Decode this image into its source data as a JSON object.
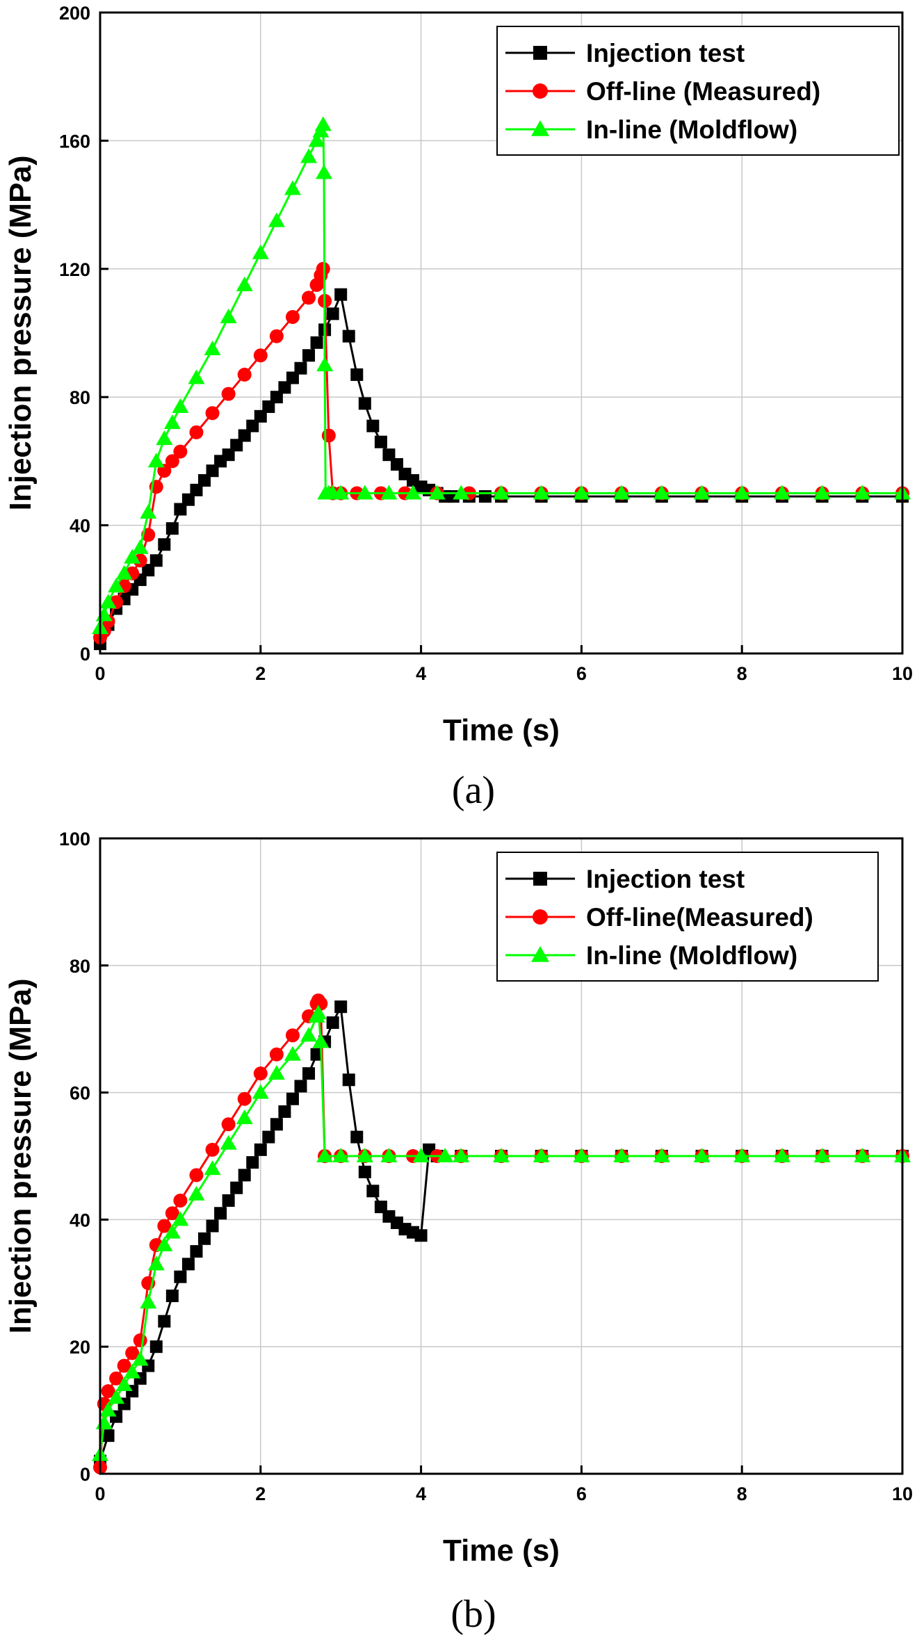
{
  "chart_data": [
    {
      "type": "line",
      "caption": "(a)",
      "xlabel": "Time (s)",
      "ylabel": "Injection pressure (MPa)",
      "xlim": [
        0,
        10
      ],
      "ylim": [
        0,
        200
      ],
      "xticks": [
        0,
        2,
        4,
        6,
        8,
        10
      ],
      "yticks": [
        0,
        40,
        80,
        120,
        160,
        200
      ],
      "grid": true,
      "legend_position": "top-right",
      "series": [
        {
          "name": "Injection test",
          "color": "#000000",
          "marker": "square",
          "x": [
            0,
            0.1,
            0.2,
            0.3,
            0.4,
            0.5,
            0.6,
            0.7,
            0.8,
            0.9,
            1.0,
            1.1,
            1.2,
            1.3,
            1.4,
            1.5,
            1.6,
            1.7,
            1.8,
            1.9,
            2.0,
            2.1,
            2.2,
            2.3,
            2.4,
            2.5,
            2.6,
            2.7,
            2.8,
            2.9,
            3.0,
            3.1,
            3.2,
            3.3,
            3.4,
            3.5,
            3.6,
            3.7,
            3.8,
            3.9,
            4.0,
            4.1,
            4.2,
            4.3,
            4.4,
            4.6,
            4.8,
            5.0,
            5.5,
            6.0,
            6.5,
            7.0,
            7.5,
            8.0,
            8.5,
            9.0,
            9.5,
            10.0
          ],
          "y": [
            3,
            9,
            14,
            17,
            20,
            23,
            26,
            29,
            34,
            39,
            45,
            48,
            51,
            54,
            57,
            60,
            62,
            65,
            68,
            71,
            74,
            77,
            80,
            83,
            86,
            89,
            93,
            97,
            101,
            106,
            112,
            99,
            87,
            78,
            71,
            66,
            62,
            59,
            56,
            54,
            52,
            51,
            50,
            49,
            49,
            49,
            49,
            49,
            49,
            49,
            49,
            49,
            49,
            49,
            49,
            49,
            49,
            49
          ]
        },
        {
          "name": "Off-line (Measured)",
          "color": "#ff0000",
          "marker": "circle",
          "x": [
            0,
            0.05,
            0.1,
            0.2,
            0.3,
            0.4,
            0.5,
            0.6,
            0.7,
            0.8,
            0.9,
            1.0,
            1.2,
            1.4,
            1.6,
            1.8,
            2.0,
            2.2,
            2.4,
            2.6,
            2.7,
            2.75,
            2.78,
            2.8,
            2.85,
            2.9,
            3.0,
            3.2,
            3.5,
            3.8,
            4.2,
            4.6,
            5.0,
            5.5,
            6.0,
            6.5,
            7.0,
            7.5,
            8.0,
            8.5,
            9.0,
            9.5,
            10.0
          ],
          "y": [
            5,
            7,
            10,
            16,
            21,
            25,
            29,
            37,
            52,
            57,
            60,
            63,
            69,
            75,
            81,
            87,
            93,
            99,
            105,
            111,
            115,
            118,
            120,
            110,
            68,
            50,
            50,
            50,
            50,
            50,
            50,
            50,
            50,
            50,
            50,
            50,
            50,
            50,
            50,
            50,
            50,
            50,
            50
          ]
        },
        {
          "name": "In-line (Moldflow)",
          "color": "#00ff00",
          "marker": "triangle",
          "x": [
            0,
            0.05,
            0.1,
            0.2,
            0.3,
            0.4,
            0.5,
            0.6,
            0.7,
            0.8,
            0.9,
            1.0,
            1.2,
            1.4,
            1.6,
            1.8,
            2.0,
            2.2,
            2.4,
            2.6,
            2.7,
            2.75,
            2.78,
            2.79,
            2.8,
            2.81,
            2.85,
            2.9,
            3.0,
            3.3,
            3.6,
            3.9,
            4.2,
            4.5,
            5.0,
            5.5,
            6.0,
            6.5,
            7.0,
            7.5,
            8.0,
            8.5,
            9.0,
            9.5,
            10.0
          ],
          "y": [
            8,
            12,
            16,
            21,
            25,
            30,
            33,
            44,
            60,
            67,
            72,
            77,
            86,
            95,
            105,
            115,
            125,
            135,
            145,
            155,
            160,
            163,
            165,
            150,
            90,
            50,
            50,
            50,
            50,
            50,
            50,
            50,
            50,
            50,
            50,
            50,
            50,
            50,
            50,
            50,
            50,
            50,
            50,
            50,
            50
          ]
        }
      ]
    },
    {
      "type": "line",
      "caption": "(b)",
      "xlabel": "Time (s)",
      "ylabel": "Injection pressure (MPa)",
      "xlim": [
        0,
        10
      ],
      "ylim": [
        0,
        100
      ],
      "xticks": [
        0,
        2,
        4,
        6,
        8,
        10
      ],
      "yticks": [
        0,
        20,
        40,
        60,
        80,
        100
      ],
      "grid": true,
      "legend_position": "top-right",
      "series": [
        {
          "name": "Injection test",
          "color": "#000000",
          "marker": "square",
          "x": [
            0,
            0.1,
            0.2,
            0.3,
            0.4,
            0.5,
            0.6,
            0.7,
            0.8,
            0.9,
            1.0,
            1.1,
            1.2,
            1.3,
            1.4,
            1.5,
            1.6,
            1.7,
            1.8,
            1.9,
            2.0,
            2.1,
            2.2,
            2.3,
            2.4,
            2.5,
            2.6,
            2.7,
            2.8,
            2.9,
            3.0,
            3.1,
            3.2,
            3.3,
            3.4,
            3.5,
            3.6,
            3.7,
            3.8,
            3.9,
            4.0,
            4.1,
            4.2,
            4.5,
            5.0,
            5.5,
            6.0,
            6.5,
            7.0,
            7.5,
            8.0,
            8.5,
            9.0,
            9.5,
            10.0
          ],
          "y": [
            2,
            6,
            9,
            11,
            13,
            15,
            17,
            20,
            24,
            28,
            31,
            33,
            35,
            37,
            39,
            41,
            43,
            45,
            47,
            49,
            51,
            53,
            55,
            57,
            59,
            61,
            63,
            66,
            68,
            71,
            73.5,
            62,
            53,
            47.5,
            44.5,
            42,
            40.5,
            39.5,
            38.5,
            38,
            37.5,
            51,
            50,
            50,
            50,
            50,
            50,
            50,
            50,
            50,
            50,
            50,
            50,
            50,
            50
          ]
        },
        {
          "name": "Off-line(Measured)",
          "color": "#ff0000",
          "marker": "circle",
          "x": [
            0,
            0.05,
            0.1,
            0.2,
            0.3,
            0.4,
            0.5,
            0.6,
            0.7,
            0.8,
            0.9,
            1.0,
            1.2,
            1.4,
            1.6,
            1.8,
            2.0,
            2.2,
            2.4,
            2.6,
            2.7,
            2.72,
            2.75,
            2.8,
            3.0,
            3.3,
            3.6,
            3.9,
            4.2,
            4.5,
            5.0,
            5.5,
            6.0,
            6.5,
            7.0,
            7.5,
            8.0,
            8.5,
            9.0,
            9.5,
            10.0
          ],
          "y": [
            1,
            11,
            13,
            15,
            17,
            19,
            21,
            30,
            36,
            39,
            41,
            43,
            47,
            51,
            55,
            59,
            63,
            66,
            69,
            72,
            74,
            74.5,
            74,
            50,
            50,
            50,
            50,
            50,
            50,
            50,
            50,
            50,
            50,
            50,
            50,
            50,
            50,
            50,
            50,
            50,
            50
          ]
        },
        {
          "name": "In-line (Moldflow)",
          "color": "#00ff00",
          "marker": "triangle",
          "x": [
            0,
            0.05,
            0.1,
            0.2,
            0.3,
            0.4,
            0.5,
            0.6,
            0.7,
            0.8,
            0.9,
            1.0,
            1.2,
            1.4,
            1.6,
            1.8,
            2.0,
            2.2,
            2.4,
            2.6,
            2.7,
            2.72,
            2.75,
            2.8,
            3.0,
            3.3,
            3.6,
            4.0,
            4.3,
            4.5,
            5.0,
            5.5,
            6.0,
            6.5,
            7.0,
            7.5,
            8.0,
            8.5,
            9.0,
            9.5,
            10.0
          ],
          "y": [
            3,
            8,
            10,
            12,
            14,
            16,
            18,
            27,
            33,
            36,
            38,
            40,
            44,
            48,
            52,
            56,
            60,
            63,
            66,
            69,
            72,
            72.5,
            68,
            50,
            50,
            50,
            50,
            50,
            50,
            50,
            50,
            50,
            50,
            50,
            50,
            50,
            50,
            50,
            50,
            50,
            50
          ]
        }
      ]
    }
  ]
}
